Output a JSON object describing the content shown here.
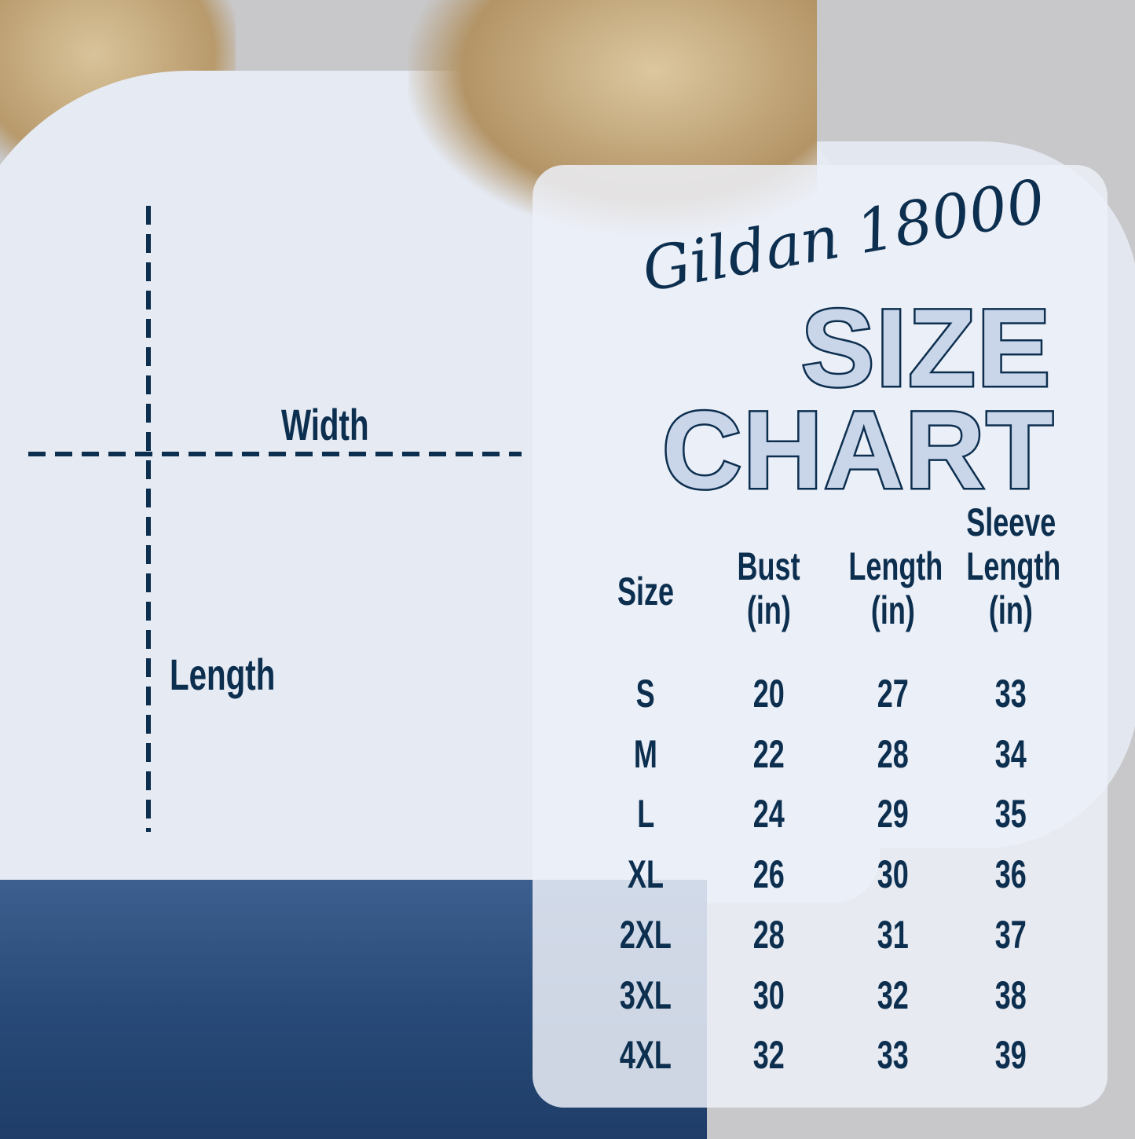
{
  "diagram": {
    "width_label": "Width",
    "length_label": "Length"
  },
  "chart": {
    "brand": "Gildan 18000",
    "title_line1": "SIZE",
    "title_line2": "CHART",
    "headers": [
      [
        "Size"
      ],
      [
        "Bust",
        "(in)"
      ],
      [
        "Length",
        "(in)"
      ],
      [
        "Sleeve",
        "Length",
        "(in)"
      ]
    ],
    "rows": [
      [
        "S",
        "20",
        "27",
        "33"
      ],
      [
        "M",
        "22",
        "28",
        "34"
      ],
      [
        "L",
        "24",
        "29",
        "35"
      ],
      [
        "XL",
        "26",
        "30",
        "36"
      ],
      [
        "2XL",
        "28",
        "31",
        "37"
      ],
      [
        "3XL",
        "30",
        "32",
        "38"
      ],
      [
        "4XL",
        "32",
        "33",
        "39"
      ]
    ]
  },
  "colors": {
    "text": "#0d2f4f",
    "panel": "#ecf0f8",
    "shirt": "#e5eaf3",
    "background": "#c8c8ca"
  }
}
